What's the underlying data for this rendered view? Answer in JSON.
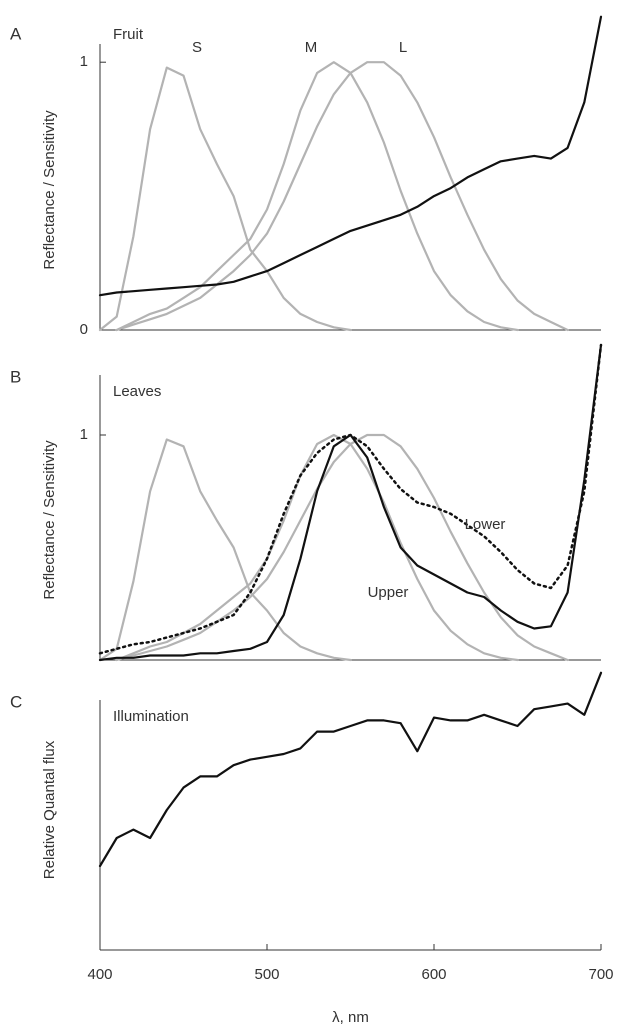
{
  "chart_data": [
    {
      "type": "line",
      "panel": "A",
      "annotation": "Fruit",
      "y_label": "Reflectance / Sensitivity",
      "x": [
        400,
        410,
        420,
        430,
        440,
        450,
        460,
        470,
        480,
        490,
        500,
        510,
        520,
        530,
        540,
        550,
        560,
        570,
        580,
        590,
        600,
        610,
        620,
        630,
        640,
        650,
        660,
        670,
        680,
        690,
        700
      ],
      "xlim": [
        400,
        700
      ],
      "ylim": [
        0,
        1.18
      ],
      "yticks": [
        0,
        1
      ],
      "series": [
        {
          "name": "S",
          "color": "#b3b3b3",
          "values": [
            0.0,
            0.05,
            0.35,
            0.75,
            0.98,
            0.95,
            0.75,
            0.62,
            0.5,
            0.3,
            0.22,
            0.12,
            0.06,
            0.03,
            0.01,
            0.0,
            null,
            null,
            null,
            null,
            null,
            null,
            null,
            null,
            null,
            null,
            null,
            null,
            null,
            null,
            null
          ]
        },
        {
          "name": "M",
          "color": "#b3b3b3",
          "values": [
            null,
            0.0,
            0.03,
            0.06,
            0.08,
            0.12,
            0.16,
            0.22,
            0.28,
            0.34,
            0.45,
            0.62,
            0.82,
            0.96,
            1.0,
            0.96,
            0.85,
            0.7,
            0.52,
            0.36,
            0.22,
            0.13,
            0.07,
            0.03,
            0.01,
            0.0,
            null,
            null,
            null,
            null,
            null
          ]
        },
        {
          "name": "L",
          "color": "#b3b3b3",
          "values": [
            null,
            0.0,
            0.02,
            0.04,
            0.06,
            0.09,
            0.12,
            0.17,
            0.22,
            0.28,
            0.36,
            0.48,
            0.62,
            0.76,
            0.88,
            0.96,
            1.0,
            1.0,
            0.95,
            0.85,
            0.72,
            0.57,
            0.43,
            0.3,
            0.19,
            0.11,
            0.06,
            0.03,
            0.0,
            null,
            null
          ]
        },
        {
          "color": "#111111",
          "values": [
            0.13,
            0.14,
            0.145,
            0.15,
            0.155,
            0.16,
            0.165,
            0.17,
            0.18,
            0.2,
            0.22,
            0.25,
            0.28,
            0.31,
            0.34,
            0.37,
            0.39,
            0.41,
            0.43,
            0.46,
            0.5,
            0.53,
            0.57,
            0.6,
            0.63,
            0.64,
            0.65,
            0.64,
            0.68,
            0.85,
            1.17
          ]
        }
      ]
    },
    {
      "type": "line",
      "panel": "B",
      "annotation": "Leaves",
      "y_label": "Reflectance / Sensitivity",
      "x": [
        400,
        410,
        420,
        430,
        440,
        450,
        460,
        470,
        480,
        490,
        500,
        510,
        520,
        530,
        540,
        550,
        560,
        570,
        580,
        590,
        600,
        610,
        620,
        630,
        640,
        650,
        660,
        670,
        680,
        690,
        700
      ],
      "xlim": [
        400,
        700
      ],
      "ylim": [
        0,
        1.4
      ],
      "yticks": [
        1
      ],
      "series": [
        {
          "color": "#b3b3b3",
          "values": [
            0.0,
            0.05,
            0.35,
            0.75,
            0.98,
            0.95,
            0.75,
            0.62,
            0.5,
            0.3,
            0.22,
            0.12,
            0.06,
            0.03,
            0.01,
            0.0,
            null,
            null,
            null,
            null,
            null,
            null,
            null,
            null,
            null,
            null,
            null,
            null,
            null,
            null,
            null
          ]
        },
        {
          "color": "#b3b3b3",
          "values": [
            null,
            0.0,
            0.03,
            0.06,
            0.08,
            0.12,
            0.16,
            0.22,
            0.28,
            0.34,
            0.45,
            0.62,
            0.82,
            0.96,
            1.0,
            0.96,
            0.85,
            0.7,
            0.52,
            0.36,
            0.22,
            0.13,
            0.07,
            0.03,
            0.01,
            0.0,
            null,
            null,
            null,
            null,
            null
          ]
        },
        {
          "color": "#b3b3b3",
          "values": [
            null,
            0.0,
            0.02,
            0.04,
            0.06,
            0.09,
            0.12,
            0.17,
            0.22,
            0.28,
            0.36,
            0.48,
            0.62,
            0.76,
            0.88,
            0.96,
            1.0,
            1.0,
            0.95,
            0.85,
            0.72,
            0.57,
            0.43,
            0.3,
            0.19,
            0.11,
            0.06,
            0.03,
            0.0,
            null,
            null
          ]
        },
        {
          "name": "Upper",
          "color": "#111111",
          "values": [
            0.0,
            0.01,
            0.01,
            0.02,
            0.02,
            0.02,
            0.03,
            0.03,
            0.04,
            0.05,
            0.08,
            0.2,
            0.45,
            0.75,
            0.95,
            1.0,
            0.9,
            0.68,
            0.5,
            0.42,
            0.38,
            0.34,
            0.3,
            0.28,
            0.22,
            0.17,
            0.14,
            0.15,
            0.3,
            0.8,
            1.4
          ]
        },
        {
          "name": "Lower",
          "color": "#111111",
          "style": "dotted",
          "values": [
            0.03,
            0.05,
            0.07,
            0.08,
            0.1,
            0.12,
            0.14,
            0.17,
            0.2,
            0.3,
            0.45,
            0.65,
            0.82,
            0.92,
            0.98,
            1.0,
            0.95,
            0.85,
            0.76,
            0.7,
            0.68,
            0.65,
            0.6,
            0.55,
            0.48,
            0.4,
            0.34,
            0.32,
            0.42,
            0.75,
            1.4
          ]
        }
      ]
    },
    {
      "type": "line",
      "panel": "C",
      "annotation": "Illumination",
      "y_label": "Relative Quantal flux",
      "x_label": "λ, nm",
      "x": [
        400,
        410,
        420,
        430,
        440,
        450,
        460,
        470,
        480,
        490,
        500,
        510,
        520,
        530,
        540,
        550,
        560,
        570,
        580,
        590,
        600,
        610,
        620,
        630,
        640,
        650,
        660,
        670,
        680,
        690,
        700
      ],
      "xlim": [
        400,
        700
      ],
      "xticks": [
        400,
        500,
        600,
        700
      ],
      "ylim": [
        0,
        1
      ],
      "series": [
        {
          "color": "#111111",
          "values": [
            0.3,
            0.4,
            0.43,
            0.4,
            0.5,
            0.58,
            0.62,
            0.62,
            0.66,
            0.68,
            0.69,
            0.7,
            0.72,
            0.78,
            0.78,
            0.8,
            0.82,
            0.82,
            0.81,
            0.71,
            0.83,
            0.82,
            0.82,
            0.84,
            0.82,
            0.8,
            0.86,
            0.87,
            0.88,
            0.84,
            0.99
          ]
        }
      ]
    }
  ]
}
